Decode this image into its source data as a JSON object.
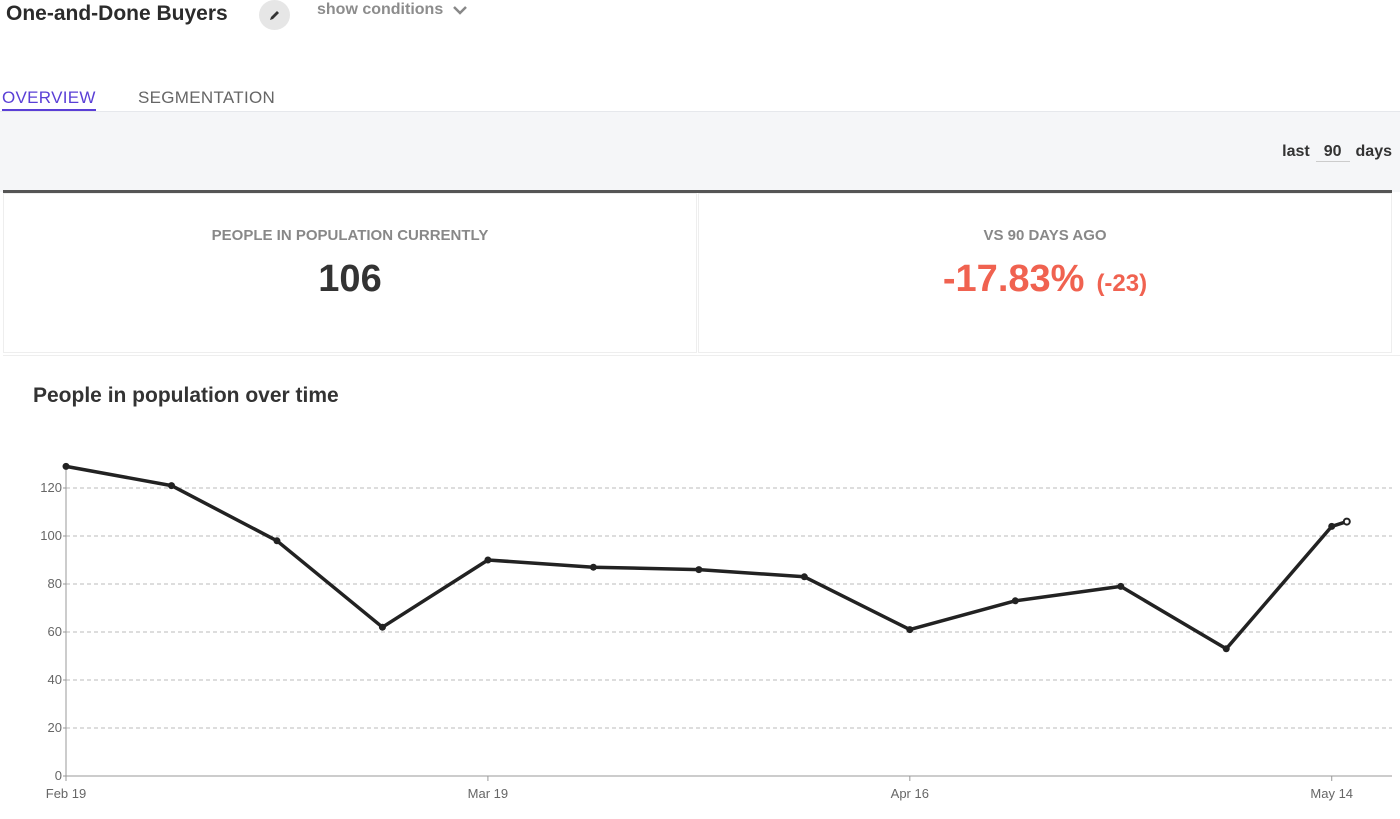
{
  "header": {
    "title": "One-and-Done Buyers",
    "toggle": "show conditions"
  },
  "tabs": [
    "OVERVIEW",
    "SEGMENTATION"
  ],
  "range": {
    "prefix": "last",
    "value": "90",
    "suffix": "days"
  },
  "stats": [
    {
      "label": "PEOPLE IN POPULATION CURRENTLY",
      "value": "106"
    },
    {
      "label": "VS 90 DAYS AGO",
      "value": "-17.83%",
      "change": "(-23)"
    }
  ],
  "chart_data": {
    "type": "line",
    "title": "People in population over time",
    "x": [
      "Feb 19",
      "Feb 26",
      "Mar 5",
      "Mar 12",
      "Mar 19",
      "Mar 26",
      "Apr 2",
      "Apr 9",
      "Apr 16",
      "Apr 23",
      "Apr 30",
      "May 7",
      "May 14",
      "May 15"
    ],
    "series": [
      {
        "name": "People",
        "color": "#222222",
        "values": [
          129,
          121,
          98,
          62,
          90,
          87,
          86,
          83,
          61,
          73,
          79,
          53,
          104,
          106
        ]
      }
    ],
    "xlim": [
      "Feb 19",
      "May 18"
    ],
    "xticks": [
      "Feb 19",
      "Mar 19",
      "Apr 16",
      "May 14"
    ],
    "ylim": [
      0,
      130
    ],
    "yticks": [
      0,
      20,
      40,
      60,
      80,
      100,
      120
    ],
    "grid": true
  }
}
